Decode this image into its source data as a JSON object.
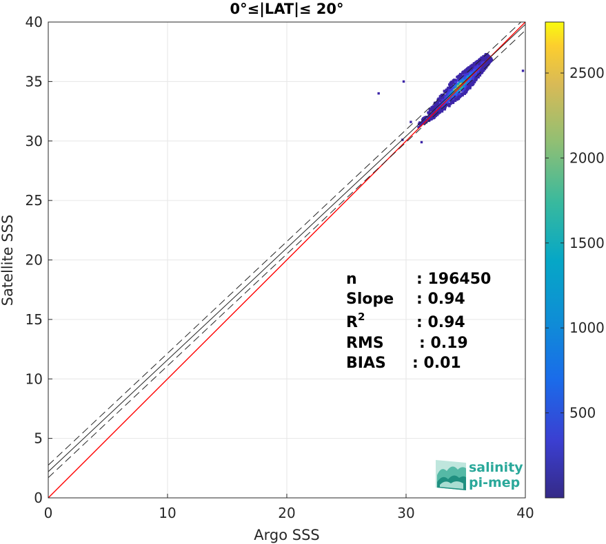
{
  "chart_data": {
    "type": "heatmap",
    "title": "0°≤|LAT|≤ 20°",
    "xlabel": "Argo SSS",
    "ylabel": "Satellite SSS",
    "xlim": [
      0,
      40
    ],
    "ylim": [
      0,
      40
    ],
    "xticks": [
      0,
      10,
      20,
      30,
      40
    ],
    "yticks": [
      0,
      5,
      10,
      15,
      20,
      25,
      30,
      35,
      40
    ],
    "grid": true,
    "colorbar": {
      "range": [
        0,
        2800
      ],
      "ticks": [
        500,
        1000,
        1500,
        2000,
        2500
      ],
      "colormap": "parula"
    },
    "reference_lines": [
      {
        "name": "1:1 line",
        "slope": 1.0,
        "intercept": 0.0,
        "color": "#ff0000",
        "style": "solid"
      },
      {
        "name": "regression fit",
        "slope": 0.94,
        "intercept": 2.2,
        "color": "#222222",
        "style": "solid"
      },
      {
        "name": "fit upper bound",
        "slope": 0.94,
        "intercept": 2.75,
        "color": "#222222",
        "style": "dashed"
      },
      {
        "name": "fit lower bound",
        "slope": 0.94,
        "intercept": 1.7,
        "color": "#222222",
        "style": "dashed"
      }
    ],
    "density_cluster": {
      "center": [
        34.5,
        34.5
      ],
      "x_range": [
        31,
        37
      ],
      "y_range": [
        31,
        37
      ]
    },
    "stats": [
      {
        "label": "n",
        "value": ": 196450"
      },
      {
        "label": "Slope",
        "value": ": 0.94"
      },
      {
        "label": "R",
        "sup": "2",
        "value": ": 0.94"
      },
      {
        "label": "RMS",
        "value": ": 0.19"
      },
      {
        "label": "BIAS",
        "value": ": 0.01"
      }
    ]
  },
  "logo": {
    "line1": "salinity",
    "line2": "pi-mep"
  }
}
